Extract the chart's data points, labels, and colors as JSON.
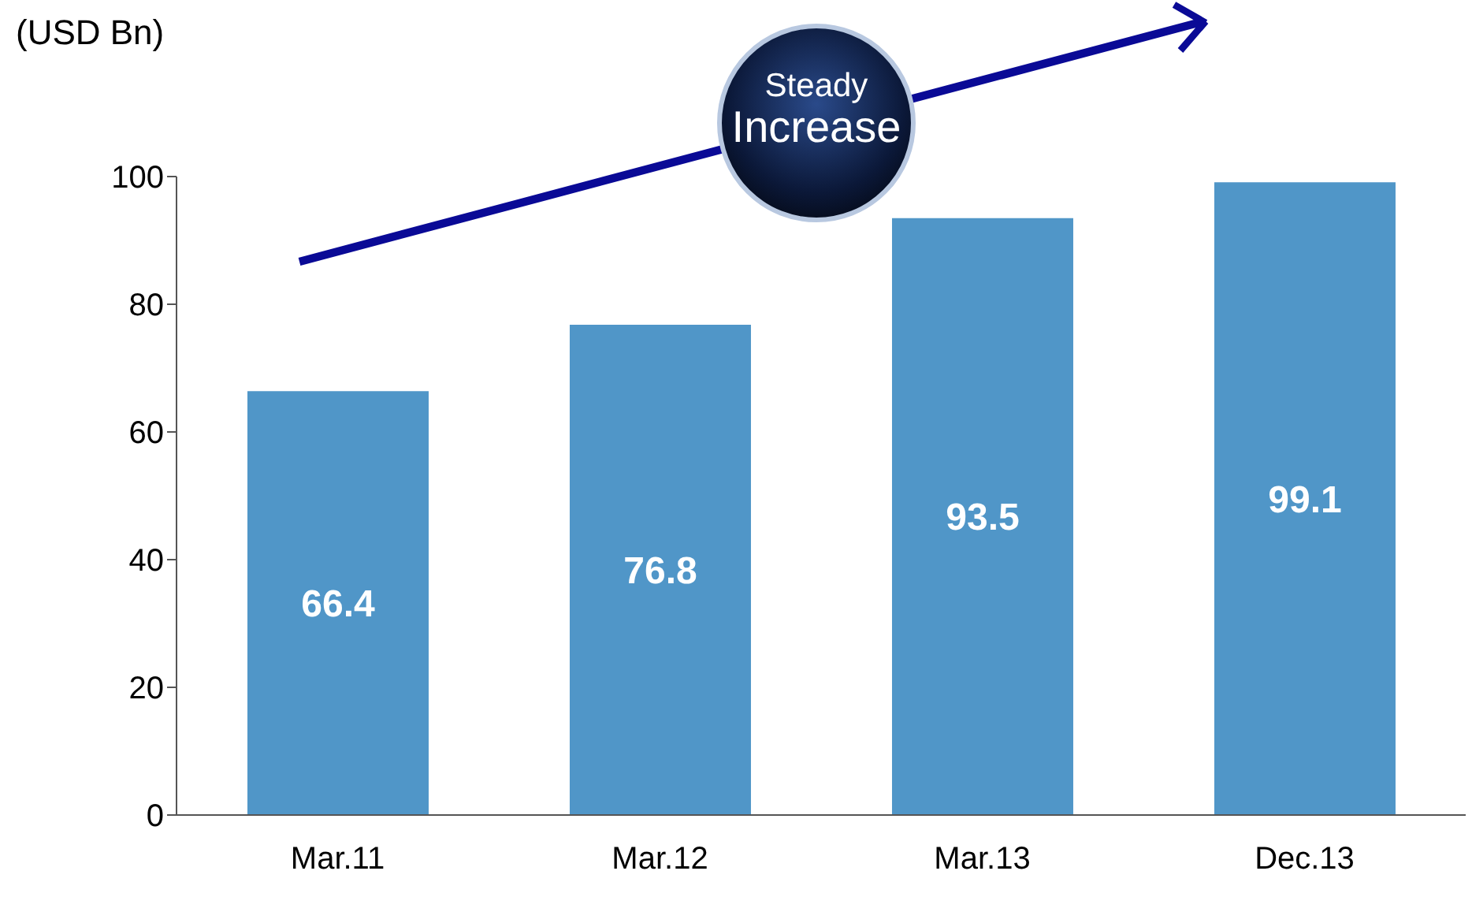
{
  "chart_data": {
    "type": "bar",
    "ylabel": "(USD Bn)",
    "categories": [
      "Mar.11",
      "Mar.12",
      "Mar.13",
      "Dec.13"
    ],
    "values": [
      66.4,
      76.8,
      93.5,
      99.1
    ],
    "color": "#5096c8",
    "ylim": [
      0,
      100
    ],
    "yticks": [
      0,
      20,
      40,
      60,
      80,
      100
    ],
    "data_labels": true,
    "grid": false,
    "legend": false,
    "annotations": [
      "Steady Increase"
    ]
  }
}
